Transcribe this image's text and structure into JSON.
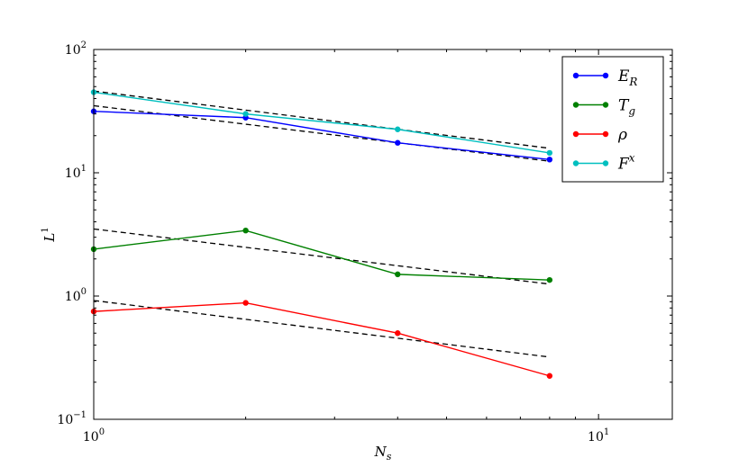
{
  "chart_data": {
    "type": "line",
    "xscale": "log",
    "yscale": "log",
    "xlim": [
      1,
      14
    ],
    "ylim": [
      0.1,
      100
    ],
    "xlabel": "N_s",
    "ylabel": "L^1",
    "x_ticks": [
      {
        "value": 1,
        "base": "10",
        "exp": "0"
      },
      {
        "value": 10,
        "base": "10",
        "exp": "1"
      }
    ],
    "y_ticks": [
      {
        "value": 0.1,
        "base": "10",
        "exp": "−1"
      },
      {
        "value": 1,
        "base": "10",
        "exp": "0"
      },
      {
        "value": 10,
        "base": "10",
        "exp": "1"
      },
      {
        "value": 100,
        "base": "10",
        "exp": "2"
      }
    ],
    "grid": false,
    "legend_position": "top-right",
    "series": [
      {
        "name": "E_R",
        "label_main": "E",
        "label_sub": "R",
        "label_sup": "",
        "color": "#0000ff",
        "x": [
          1,
          2,
          4,
          8
        ],
        "y": [
          31.5,
          28.0,
          17.5,
          12.8
        ]
      },
      {
        "name": "T_g",
        "label_main": "T",
        "label_sub": "g",
        "label_sup": "",
        "color": "#008000",
        "x": [
          1,
          2,
          4,
          8
        ],
        "y": [
          2.4,
          3.4,
          1.5,
          1.35
        ]
      },
      {
        "name": "rho",
        "label_main": "ρ",
        "label_sub": "",
        "label_sup": "",
        "color": "#ff0000",
        "x": [
          1,
          2,
          4,
          8
        ],
        "y": [
          0.75,
          0.88,
          0.5,
          0.225
        ]
      },
      {
        "name": "F^x",
        "label_main": "F",
        "label_sub": "",
        "label_sup": "x",
        "color": "#00bfbf",
        "x": [
          1,
          2,
          4,
          8
        ],
        "y": [
          45.0,
          30.0,
          22.5,
          14.5
        ]
      }
    ],
    "reference_lines": [
      {
        "style": "dashed",
        "color": "#000000",
        "x": [
          1,
          8
        ],
        "y": [
          46.0,
          15.8
        ]
      },
      {
        "style": "dashed",
        "color": "#000000",
        "x": [
          1,
          8
        ],
        "y": [
          35.0,
          12.4
        ]
      },
      {
        "style": "dashed",
        "color": "#000000",
        "x": [
          1,
          8
        ],
        "y": [
          3.5,
          1.25
        ]
      },
      {
        "style": "dashed",
        "color": "#000000",
        "x": [
          1,
          8
        ],
        "y": [
          0.92,
          0.32
        ]
      }
    ]
  }
}
